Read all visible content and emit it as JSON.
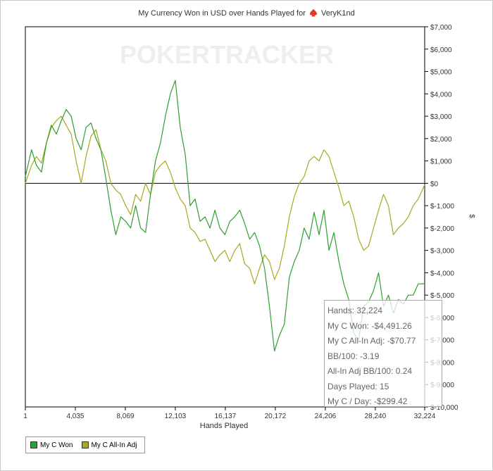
{
  "title": "My Currency Won in USD over Hands Played for",
  "player": "VeryK1nd",
  "watermark": "POKERTRACKER",
  "colors": {
    "won": "#2ea02e",
    "allin": "#a8a81e",
    "axis": "#000000",
    "spade": "#e03a2a"
  },
  "legend": {
    "won_label": "My C Won",
    "allin_label": "My C All-In Adj"
  },
  "tooltip": {
    "hands": "Hands: 32,224",
    "won": "My C Won: -$4,491.26",
    "allin": "My C All-In Adj: -$70.77",
    "bb": "BB/100: -3.19",
    "allin_bb": "All-In Adj BB/100: 0.24",
    "days": "Days Played: 15",
    "perday": "My C / Day: -$299.42"
  },
  "chart_data": {
    "type": "line",
    "title": "My Currency Won in USD over Hands Played for VeryK1nd",
    "xlabel": "Hands Played",
    "ylabel": "$",
    "xlim": [
      1,
      32224
    ],
    "ylim": [
      -10000,
      7000
    ],
    "xticks": [
      "1",
      "4,035",
      "8,069",
      "12,103",
      "16,137",
      "20,172",
      "24,206",
      "28,240",
      "32,224"
    ],
    "yticks": [
      "$7,000",
      "$6,000",
      "$5,000",
      "$4,000",
      "$3,000",
      "$2,000",
      "$1,000",
      "$0",
      "$-1,000",
      "$-2,000",
      "$-3,000",
      "$-4,000",
      "$-5,000",
      "$-6,000",
      "$-7,000",
      "$-8,000",
      "$-9,000",
      "$-10,000"
    ],
    "series": [
      {
        "name": "My C Won",
        "x": [
          1,
          500,
          900,
          1300,
          1700,
          2100,
          2500,
          2900,
          3300,
          3700,
          4100,
          4500,
          4900,
          5300,
          5700,
          6100,
          6500,
          6900,
          7300,
          7700,
          8100,
          8500,
          8900,
          9300,
          9700,
          10100,
          10500,
          10900,
          11300,
          11700,
          12100,
          12500,
          12900,
          13300,
          13700,
          14100,
          14500,
          14900,
          15300,
          15700,
          16100,
          16500,
          16900,
          17300,
          17700,
          18100,
          18500,
          18900,
          19300,
          19700,
          20100,
          20500,
          20900,
          21300,
          21700,
          22100,
          22500,
          22900,
          23300,
          23700,
          24100,
          24500,
          24900,
          25300,
          25700,
          26100,
          26500,
          26900,
          27300,
          27700,
          28100,
          28500,
          28900,
          29300,
          29700,
          30100,
          30500,
          30900,
          31300,
          31700,
          32224
        ],
        "values": [
          300,
          1500,
          800,
          500,
          1800,
          2600,
          2200,
          2800,
          3300,
          3000,
          2000,
          1500,
          2500,
          2700,
          2000,
          1500,
          200,
          -1200,
          -2300,
          -1500,
          -1700,
          -2000,
          -1000,
          -2000,
          -2200,
          -500,
          1000,
          1800,
          3000,
          4000,
          4600,
          2500,
          1300,
          -1000,
          -700,
          -1700,
          -1500,
          -2000,
          -1200,
          -2000,
          -2300,
          -1700,
          -1500,
          -1200,
          -1800,
          -2500,
          -2200,
          -2800,
          -3800,
          -5500,
          -7500,
          -6800,
          -6300,
          -4200,
          -3500,
          -3000,
          -2000,
          -2500,
          -1300,
          -2300,
          -1200,
          -3000,
          -2200,
          -3500,
          -4500,
          -5200,
          -6700,
          -7000,
          -5500,
          -5300,
          -4800,
          -4000,
          -5500,
          -5000,
          -5800,
          -5200,
          -5400,
          -5000,
          -5000,
          -4500,
          -4491
        ]
      },
      {
        "name": "My C All-In Adj",
        "x": [
          1,
          500,
          900,
          1300,
          1700,
          2100,
          2500,
          2900,
          3300,
          3700,
          4100,
          4500,
          4900,
          5300,
          5700,
          6100,
          6500,
          6900,
          7300,
          7700,
          8100,
          8500,
          8900,
          9300,
          9700,
          10100,
          10500,
          10900,
          11300,
          11700,
          12100,
          12500,
          12900,
          13300,
          13700,
          14100,
          14500,
          14900,
          15300,
          15700,
          16100,
          16500,
          16900,
          17300,
          17700,
          18100,
          18500,
          18900,
          19300,
          19700,
          20100,
          20500,
          20900,
          21300,
          21700,
          22100,
          22500,
          22900,
          23300,
          23700,
          24100,
          24500,
          24900,
          25300,
          25700,
          26100,
          26500,
          26900,
          27300,
          27700,
          28100,
          28500,
          28900,
          29300,
          29700,
          30100,
          30500,
          30900,
          31300,
          31700,
          32224
        ],
        "values": [
          0,
          800,
          1200,
          900,
          1800,
          2500,
          2800,
          3000,
          2600,
          2200,
          1000,
          0,
          1200,
          2100,
          2400,
          1500,
          1000,
          0,
          -300,
          -500,
          -1000,
          -1400,
          -500,
          -800,
          0,
          -500,
          500,
          800,
          1000,
          500,
          -200,
          -700,
          -1000,
          -2000,
          -2200,
          -2600,
          -2500,
          -3000,
          -3500,
          -3200,
          -3000,
          -3500,
          -3000,
          -2700,
          -3600,
          -3800,
          -4500,
          -3800,
          -3200,
          -3500,
          -4300,
          -3800,
          -2800,
          -1500,
          -600,
          0,
          300,
          1000,
          1200,
          1000,
          1500,
          1200,
          500,
          -200,
          -1000,
          -800,
          -1500,
          -2500,
          -3000,
          -2800,
          -2000,
          -1200,
          -500,
          -1000,
          -2300,
          -2000,
          -1800,
          -1500,
          -1000,
          -700,
          -71
        ]
      }
    ],
    "legend_position": "bottom-left",
    "grid": false
  }
}
